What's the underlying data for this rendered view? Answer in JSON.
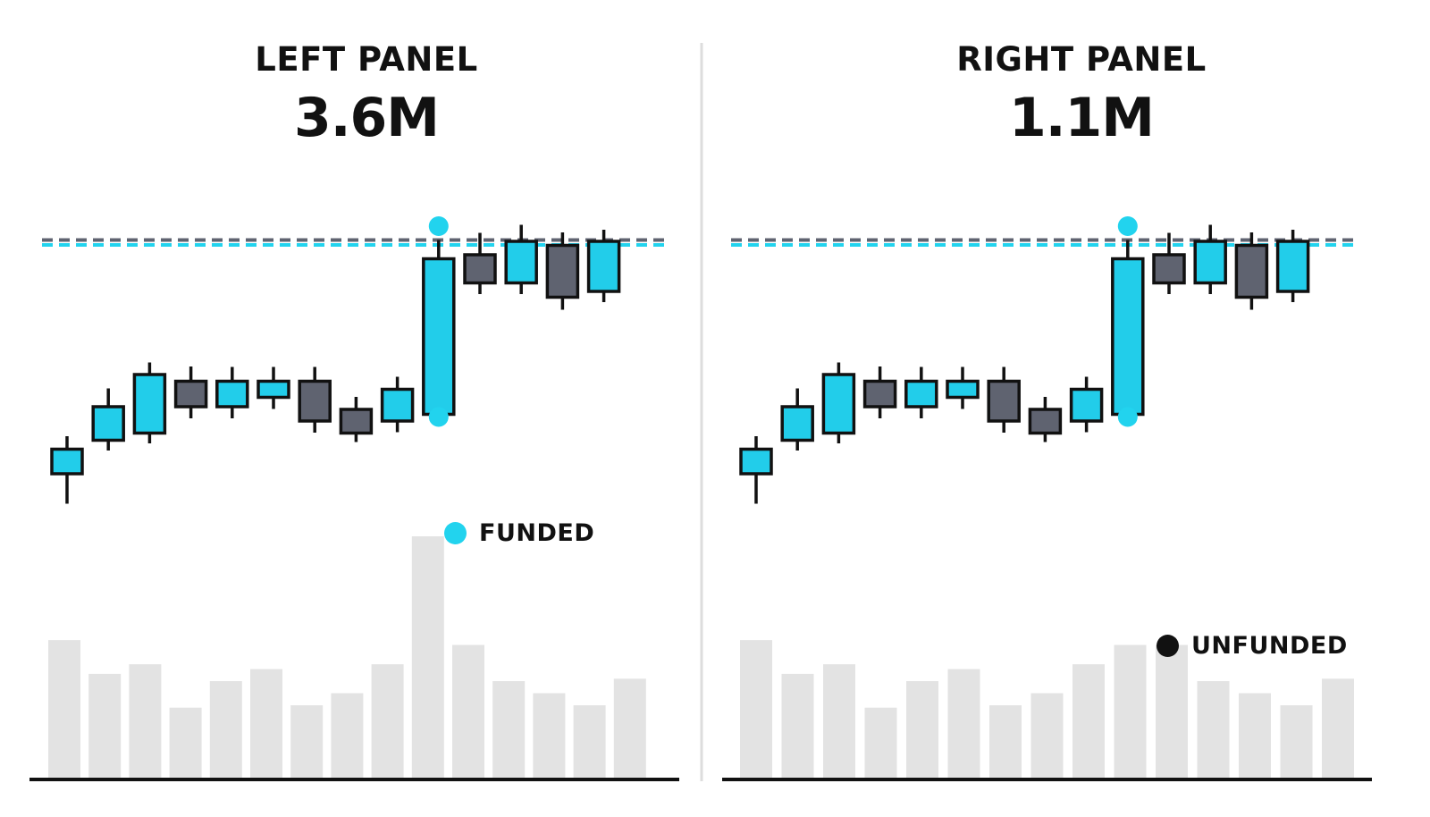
{
  "panels": {
    "left": {
      "title": "LEFT PANEL",
      "value": "3.6M"
    },
    "right": {
      "title": "RIGHT PANEL",
      "value": "1.1M"
    }
  },
  "badges": {
    "left": {
      "label": "FUNDED",
      "color": "#22d3ee"
    },
    "right": {
      "label": "UNFUNDED",
      "color": "#111111"
    }
  },
  "colors": {
    "bull": "#22cdea",
    "bear": "#5f6370",
    "outline": "#111111",
    "volume": "#e3e3e3",
    "marker": "#22d3ee",
    "level_gray": "#5f6370",
    "level_cyan": "#22d3ee",
    "divider": "#dddddd"
  },
  "chart_data": [
    {
      "type": "candlestick",
      "title": "LEFT PANEL",
      "ylim": [
        0,
        100
      ],
      "levels": [
        {
          "style": "dashed",
          "color": "gray",
          "value": 84.3
        },
        {
          "style": "dashed",
          "color": "cyan",
          "value": 83.2
        }
      ],
      "markers": [
        {
          "candle": 9,
          "position": "above",
          "value": 87.4
        },
        {
          "candle": 9,
          "position": "below",
          "value": 44.7
        }
      ],
      "candles": [
        {
          "open": 32.0,
          "close": 37.5,
          "high": 40.4,
          "low": 25.3,
          "volume": 0.57
        },
        {
          "open": 39.5,
          "close": 47.0,
          "high": 51.1,
          "low": 37.2,
          "volume": 0.43
        },
        {
          "open": 41.1,
          "close": 54.2,
          "high": 56.9,
          "low": 38.8,
          "volume": 0.47
        },
        {
          "open": 52.7,
          "close": 47.0,
          "high": 56.0,
          "low": 44.4,
          "volume": 0.29
        },
        {
          "open": 47.0,
          "close": 52.7,
          "high": 55.9,
          "low": 44.4,
          "volume": 0.4
        },
        {
          "open": 49.1,
          "close": 52.7,
          "high": 55.9,
          "low": 46.5,
          "volume": 0.45
        },
        {
          "open": 52.7,
          "close": 43.8,
          "high": 55.9,
          "low": 41.2,
          "volume": 0.3
        },
        {
          "open": 46.4,
          "close": 41.1,
          "high": 49.2,
          "low": 39.1,
          "volume": 0.35
        },
        {
          "open": 43.8,
          "close": 50.9,
          "high": 53.7,
          "low": 41.3,
          "volume": 0.47
        },
        {
          "open": 45.3,
          "close": 80.1,
          "high": 84.3,
          "low": 44.1,
          "volume": 1.0
        },
        {
          "open": 81.0,
          "close": 74.7,
          "high": 85.9,
          "low": 72.2,
          "volume": 0.55
        },
        {
          "open": 74.7,
          "close": 84.0,
          "high": 87.7,
          "low": 72.2,
          "volume": 0.4
        },
        {
          "open": 83.1,
          "close": 71.5,
          "high": 86.0,
          "low": 68.7,
          "volume": 0.35
        },
        {
          "open": 72.8,
          "close": 84.0,
          "high": 86.6,
          "low": 70.4,
          "volume": 0.3
        }
      ],
      "volume_extra": [
        0.41
      ]
    },
    {
      "type": "candlestick",
      "title": "RIGHT PANEL",
      "ylim": [
        0,
        100
      ],
      "levels": [
        {
          "style": "dashed",
          "color": "gray",
          "value": 84.3
        },
        {
          "style": "dashed",
          "color": "cyan",
          "value": 83.2
        }
      ],
      "markers": [
        {
          "candle": 9,
          "position": "above",
          "value": 87.4
        },
        {
          "candle": 9,
          "position": "below",
          "value": 44.7
        }
      ],
      "candles": [
        {
          "open": 32.0,
          "close": 37.5,
          "high": 40.4,
          "low": 25.3,
          "volume": 0.57
        },
        {
          "open": 39.5,
          "close": 47.0,
          "high": 51.1,
          "low": 37.2,
          "volume": 0.43
        },
        {
          "open": 41.1,
          "close": 54.2,
          "high": 56.9,
          "low": 38.8,
          "volume": 0.47
        },
        {
          "open": 52.7,
          "close": 47.0,
          "high": 56.0,
          "low": 44.4,
          "volume": 0.29
        },
        {
          "open": 47.0,
          "close": 52.7,
          "high": 55.9,
          "low": 44.4,
          "volume": 0.4
        },
        {
          "open": 49.1,
          "close": 52.7,
          "high": 55.9,
          "low": 46.5,
          "volume": 0.45
        },
        {
          "open": 52.7,
          "close": 43.8,
          "high": 55.9,
          "low": 41.2,
          "volume": 0.3
        },
        {
          "open": 46.4,
          "close": 41.1,
          "high": 49.2,
          "low": 39.1,
          "volume": 0.35
        },
        {
          "open": 43.8,
          "close": 50.9,
          "high": 53.7,
          "low": 41.3,
          "volume": 0.47
        },
        {
          "open": 45.3,
          "close": 80.1,
          "high": 84.3,
          "low": 44.1,
          "volume": 0.55
        },
        {
          "open": 81.0,
          "close": 74.7,
          "high": 85.9,
          "low": 72.2,
          "volume": 0.55
        },
        {
          "open": 74.7,
          "close": 84.0,
          "high": 87.7,
          "low": 72.2,
          "volume": 0.4
        },
        {
          "open": 83.1,
          "close": 71.5,
          "high": 86.0,
          "low": 68.7,
          "volume": 0.35
        },
        {
          "open": 72.8,
          "close": 84.0,
          "high": 86.6,
          "low": 70.4,
          "volume": 0.3
        }
      ],
      "volume_extra": [
        0.41
      ]
    }
  ]
}
